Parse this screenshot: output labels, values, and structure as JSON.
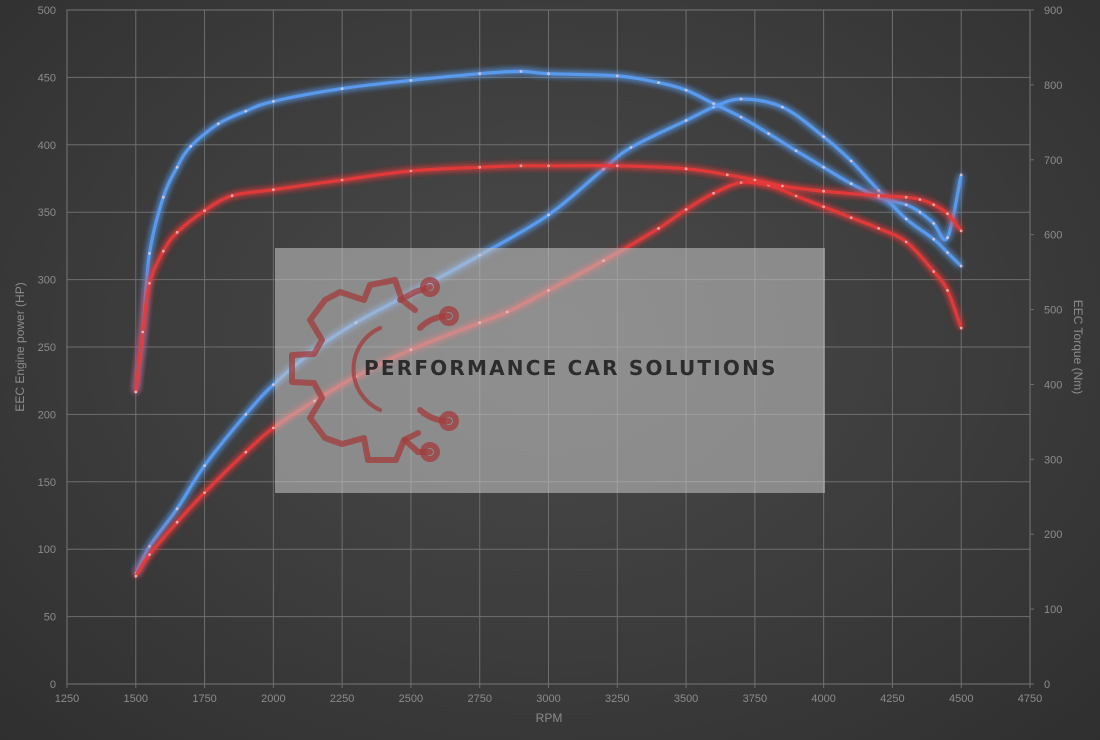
{
  "chart_data": {
    "type": "line",
    "title": "",
    "xlabel": "RPM",
    "ylabel_left": "EEC Engine power (HP)",
    "ylabel_right": "EEC Torque (Nm)",
    "xlim": [
      1250,
      4750
    ],
    "ylim_left": [
      0,
      500
    ],
    "ylim_right": [
      0,
      900
    ],
    "x_ticks": [
      "1250",
      "1500",
      "1750",
      "2000",
      "2250",
      "2500",
      "2750",
      "3000",
      "3250",
      "3500",
      "3750",
      "4000",
      "4250",
      "4500",
      "4750"
    ],
    "y_left_ticks": [
      "0",
      "50",
      "100",
      "150",
      "200",
      "250",
      "300",
      "350",
      "400",
      "450",
      "500"
    ],
    "y_right_ticks": [
      "0",
      "100",
      "200",
      "300",
      "400",
      "500",
      "600",
      "700",
      "800",
      "900"
    ],
    "grid": true,
    "legend": "none",
    "series": [
      {
        "axis": "left",
        "color": "#5a9ff5",
        "stage": "tuned",
        "x": [
          1500,
          1550,
          1650,
          1750,
          1900,
          2000,
          2150,
          2300,
          2500,
          2750,
          3000,
          3200,
          3300,
          3500,
          3600,
          3700,
          3850,
          4000,
          4100,
          4200,
          4300,
          4400,
          4450,
          4500
        ],
        "y": [
          82,
          102,
          130,
          162,
          200,
          222,
          248,
          268,
          290,
          318,
          348,
          382,
          398,
          418,
          428,
          434,
          428,
          406,
          388,
          366,
          345,
          330,
          320,
          310
        ]
      },
      {
        "axis": "left",
        "color": "#e83a3a",
        "stage": "stock",
        "x": [
          1500,
          1550,
          1650,
          1750,
          1900,
          2000,
          2150,
          2300,
          2500,
          2750,
          2850,
          3000,
          3200,
          3400,
          3500,
          3600,
          3700,
          3800,
          3900,
          4000,
          4100,
          4200,
          4300,
          4400,
          4450,
          4500
        ],
        "y": [
          80,
          96,
          120,
          142,
          172,
          190,
          210,
          228,
          248,
          268,
          276,
          292,
          314,
          338,
          352,
          364,
          372,
          370,
          362,
          354,
          346,
          338,
          328,
          306,
          292,
          264
        ]
      },
      {
        "axis": "right",
        "color": "#5a9ff5",
        "stage": "tuned",
        "x": [
          1500,
          1525,
          1550,
          1600,
          1650,
          1700,
          1800,
          1900,
          2000,
          2250,
          2500,
          2750,
          2900,
          3000,
          3250,
          3400,
          3500,
          3600,
          3700,
          3800,
          3900,
          4000,
          4100,
          4200,
          4300,
          4350,
          4400,
          4450,
          4500
        ],
        "y": [
          390,
          470,
          575,
          650,
          690,
          718,
          748,
          765,
          778,
          795,
          806,
          815,
          818,
          815,
          812,
          803,
          793,
          775,
          757,
          735,
          712,
          690,
          668,
          650,
          640,
          630,
          615,
          596,
          680
        ]
      },
      {
        "axis": "right",
        "color": "#e83a3a",
        "stage": "stock",
        "x": [
          1500,
          1525,
          1550,
          1600,
          1650,
          1750,
          1850,
          2000,
          2250,
          2500,
          2750,
          2900,
          3000,
          3250,
          3500,
          3650,
          3750,
          3850,
          4000,
          4200,
          4300,
          4350,
          4400,
          4450,
          4500
        ],
        "y": [
          390,
          470,
          535,
          578,
          603,
          632,
          652,
          660,
          673,
          685,
          690,
          692,
          692,
          692,
          688,
          680,
          673,
          665,
          658,
          652,
          650,
          647,
          640,
          628,
          605
        ]
      }
    ]
  },
  "watermark": {
    "text": "PERFORMANCE CAR SOLUTIONS",
    "icon": "gear-circuit-logo-icon"
  }
}
